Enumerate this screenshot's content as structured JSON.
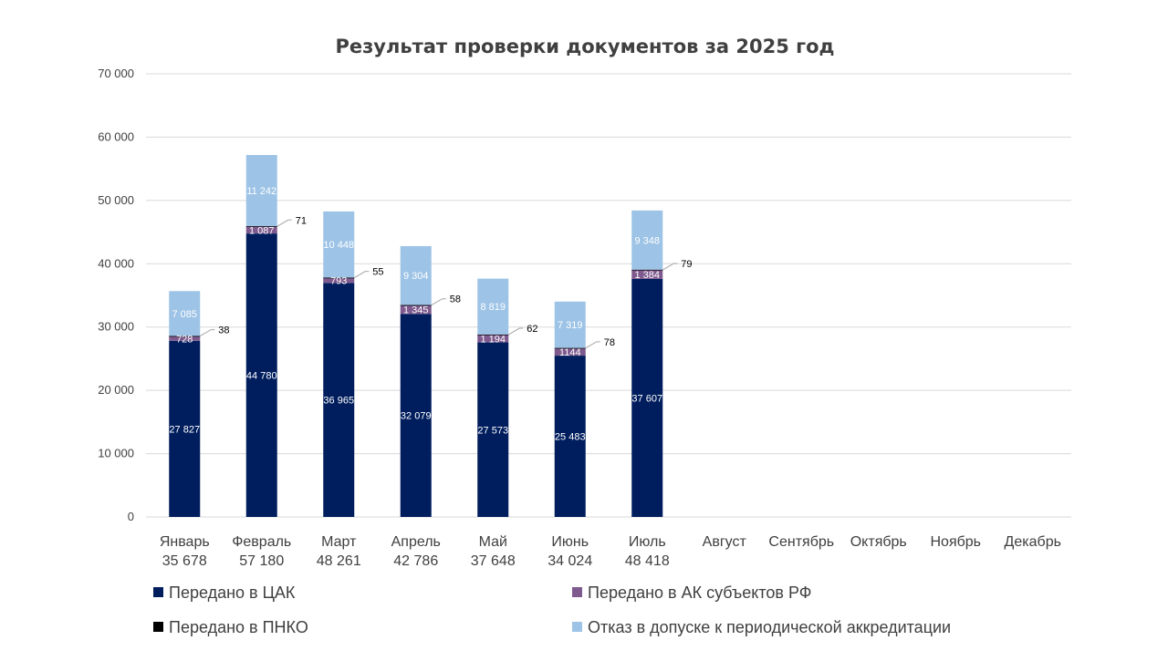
{
  "chart_data": {
    "type": "bar",
    "stacked": true,
    "title": "Результат проверки документов за 2025 год",
    "categories": [
      "Январь",
      "Февраль",
      "Март",
      "Апрель",
      "Май",
      "Июнь",
      "Июль",
      "Август",
      "Сентябрь",
      "Октябрь",
      "Ноябрь",
      "Декабрь"
    ],
    "totals": [
      "35 678",
      "57 180",
      "48 261",
      "42 786",
      "37 648",
      "34 024",
      "48 418",
      null,
      null,
      null,
      null,
      null
    ],
    "ylim": [
      0,
      70000
    ],
    "yticks": [
      0,
      10000,
      20000,
      30000,
      40000,
      50000,
      60000,
      70000
    ],
    "ytick_labels": [
      "0",
      "10 000",
      "20 000",
      "30 000",
      "40 000",
      "50 000",
      "60 000",
      "70 000"
    ],
    "grid": true,
    "legend_position": "bottom",
    "series": [
      {
        "name": "Передано в ЦАК",
        "color": "#001E5E",
        "values": [
          27827,
          44780,
          36965,
          32079,
          27573,
          25483,
          37607,
          null,
          null,
          null,
          null,
          null
        ],
        "labels": [
          "27 827",
          "44 780",
          "36 965",
          "32 079",
          "27 573",
          "25 483",
          "37 607",
          null,
          null,
          null,
          null,
          null
        ]
      },
      {
        "name": "Передано в АК субъектов РФ",
        "color": "#7E5A8E",
        "values": [
          728,
          1087,
          793,
          1345,
          1194,
          1144,
          1384,
          null,
          null,
          null,
          null,
          null
        ],
        "labels": [
          "728",
          "1 087",
          "793",
          "1 345",
          "1 194",
          "1144",
          "1 384",
          null,
          null,
          null,
          null,
          null
        ]
      },
      {
        "name": "Передано в ПНКО",
        "color": "#000000",
        "values": [
          38,
          71,
          55,
          58,
          62,
          78,
          79,
          null,
          null,
          null,
          null,
          null
        ],
        "labels": [
          "38",
          "71",
          "55",
          "58",
          "62",
          "78",
          "79",
          null,
          null,
          null,
          null,
          null
        ]
      },
      {
        "name": "Отказ в допуске к периодической аккредитации",
        "color": "#9DC3E6",
        "values": [
          7085,
          11242,
          10448,
          9304,
          8819,
          7319,
          9348,
          null,
          null,
          null,
          null,
          null
        ],
        "labels": [
          "7 085",
          "11 242",
          "10 448",
          "9 304",
          "8 819",
          "7 319",
          "9 348",
          null,
          null,
          null,
          null,
          null
        ]
      }
    ]
  }
}
